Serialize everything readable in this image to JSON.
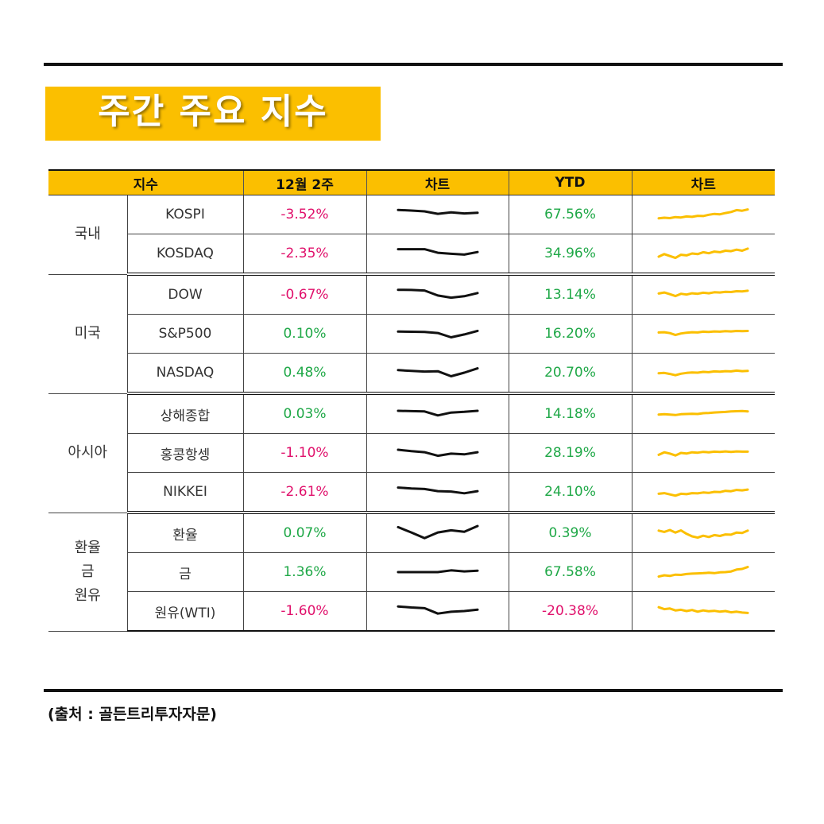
{
  "title": "주간 주요 지수",
  "header": {
    "col_index": "지수",
    "col_week": "12월 2주",
    "col_chart1": "차트",
    "col_ytd": "YTD",
    "col_chart2": "차트"
  },
  "colors": {
    "accent": "#fbbf00",
    "negative": "#e0106b",
    "positive": "#1fa847",
    "weekly_line": "#111111",
    "ytd_line": "#fbbf00"
  },
  "groups": [
    {
      "label": "국내",
      "rows": [
        {
          "name": "KOSPI",
          "week": "-3.52%",
          "week_dir": "neg",
          "ytd": "67.56%",
          "ytd_dir": "pos",
          "week_trend": [
            0.82,
            0.78,
            0.72,
            0.55,
            0.65,
            0.58,
            0.62
          ],
          "ytd_trend": [
            0.2,
            0.25,
            0.22,
            0.3,
            0.27,
            0.35,
            0.32,
            0.4,
            0.38,
            0.48,
            0.55,
            0.52,
            0.62,
            0.7,
            0.85,
            0.8,
            0.9
          ]
        },
        {
          "name": "KOSDAQ",
          "week": "-2.35%",
          "week_dir": "neg",
          "ytd": "34.96%",
          "ytd_dir": "pos",
          "week_trend": [
            0.8,
            0.8,
            0.8,
            0.55,
            0.48,
            0.42,
            0.6
          ],
          "ytd_trend": [
            0.25,
            0.45,
            0.3,
            0.15,
            0.4,
            0.35,
            0.5,
            0.45,
            0.6,
            0.52,
            0.65,
            0.6,
            0.72,
            0.68,
            0.8,
            0.72,
            0.88
          ]
        }
      ]
    },
    {
      "label": "미국",
      "rows": [
        {
          "name": "DOW",
          "week": "-0.67%",
          "week_dir": "neg",
          "ytd": "13.14%",
          "ytd_dir": "pos",
          "week_trend": [
            0.85,
            0.84,
            0.8,
            0.45,
            0.3,
            0.4,
            0.62
          ],
          "ytd_trend": [
            0.6,
            0.68,
            0.55,
            0.4,
            0.58,
            0.52,
            0.62,
            0.58,
            0.66,
            0.62,
            0.7,
            0.68,
            0.74,
            0.72,
            0.78,
            0.76,
            0.82
          ]
        },
        {
          "name": "S&P500",
          "week": "0.10%",
          "week_dir": "pos",
          "ytd": "16.20%",
          "ytd_dir": "pos",
          "week_trend": [
            0.65,
            0.64,
            0.62,
            0.55,
            0.25,
            0.45,
            0.7
          ],
          "ytd_trend": [
            0.6,
            0.62,
            0.55,
            0.4,
            0.52,
            0.58,
            0.62,
            0.6,
            0.66,
            0.64,
            0.68,
            0.66,
            0.7,
            0.68,
            0.72,
            0.7,
            0.72
          ]
        },
        {
          "name": "NASDAQ",
          "week": "0.48%",
          "week_dir": "pos",
          "ytd": "20.70%",
          "ytd_dir": "pos",
          "week_trend": [
            0.68,
            0.62,
            0.58,
            0.6,
            0.25,
            0.5,
            0.8
          ],
          "ytd_trend": [
            0.45,
            0.48,
            0.4,
            0.3,
            0.42,
            0.48,
            0.52,
            0.5,
            0.56,
            0.54,
            0.6,
            0.58,
            0.62,
            0.6,
            0.66,
            0.62,
            0.64
          ]
        }
      ]
    },
    {
      "label": "아시아",
      "rows": [
        {
          "name": "상해종합",
          "week": "0.03%",
          "week_dir": "pos",
          "ytd": "14.18%",
          "ytd_dir": "pos",
          "week_trend": [
            0.72,
            0.7,
            0.68,
            0.4,
            0.6,
            0.65,
            0.72
          ],
          "ytd_trend": [
            0.45,
            0.48,
            0.45,
            0.42,
            0.48,
            0.5,
            0.52,
            0.5,
            0.56,
            0.58,
            0.62,
            0.64,
            0.66,
            0.7,
            0.72,
            0.74,
            0.7
          ]
        },
        {
          "name": "홍콩항셍",
          "week": "-1.10%",
          "week_dir": "neg",
          "ytd": "28.19%",
          "ytd_dir": "pos",
          "week_trend": [
            0.72,
            0.62,
            0.55,
            0.3,
            0.45,
            0.4,
            0.55
          ],
          "ytd_trend": [
            0.35,
            0.55,
            0.45,
            0.3,
            0.5,
            0.45,
            0.55,
            0.52,
            0.58,
            0.55,
            0.6,
            0.58,
            0.62,
            0.58,
            0.62,
            0.6,
            0.6
          ]
        },
        {
          "name": "NIKKEI",
          "week": "-2.61%",
          "week_dir": "neg",
          "ytd": "24.10%",
          "ytd_dir": "pos",
          "week_trend": [
            0.8,
            0.74,
            0.7,
            0.55,
            0.52,
            0.4,
            0.55
          ],
          "ytd_trend": [
            0.35,
            0.4,
            0.3,
            0.2,
            0.35,
            0.32,
            0.4,
            0.38,
            0.45,
            0.42,
            0.5,
            0.48,
            0.58,
            0.55,
            0.65,
            0.62,
            0.68
          ]
        }
      ]
    },
    {
      "label": "환율\n금\n원유",
      "rows": [
        {
          "name": "환율",
          "week": "0.07%",
          "week_dir": "pos",
          "ytd": "0.39%",
          "ytd_dir": "pos",
          "week_trend": [
            0.92,
            0.55,
            0.15,
            0.55,
            0.7,
            0.6,
            1.0
          ],
          "ytd_trend": [
            0.7,
            0.6,
            0.75,
            0.55,
            0.72,
            0.45,
            0.25,
            0.15,
            0.3,
            0.2,
            0.35,
            0.28,
            0.4,
            0.38,
            0.55,
            0.52,
            0.7
          ]
        },
        {
          "name": "금",
          "week": "1.36%",
          "week_dir": "pos",
          "ytd": "67.58%",
          "ytd_dir": "pos",
          "week_trend": [
            0.5,
            0.5,
            0.5,
            0.5,
            0.62,
            0.55,
            0.6
          ],
          "ytd_trend": [
            0.15,
            0.25,
            0.2,
            0.3,
            0.28,
            0.35,
            0.38,
            0.4,
            0.42,
            0.45,
            0.42,
            0.48,
            0.5,
            0.55,
            0.7,
            0.75,
            0.9
          ]
        },
        {
          "name": "원유(WTI)",
          "week": "-1.60%",
          "week_dir": "neg",
          "ytd": "-20.38%",
          "ytd_dir": "neg",
          "week_trend": [
            0.82,
            0.75,
            0.7,
            0.32,
            0.45,
            0.5,
            0.6
          ],
          "ytd_trend": [
            0.8,
            0.65,
            0.7,
            0.55,
            0.6,
            0.5,
            0.58,
            0.45,
            0.55,
            0.48,
            0.52,
            0.45,
            0.5,
            0.4,
            0.45,
            0.38,
            0.35
          ]
        }
      ]
    }
  ],
  "source": "(출처 : 골든트리투자자문)"
}
